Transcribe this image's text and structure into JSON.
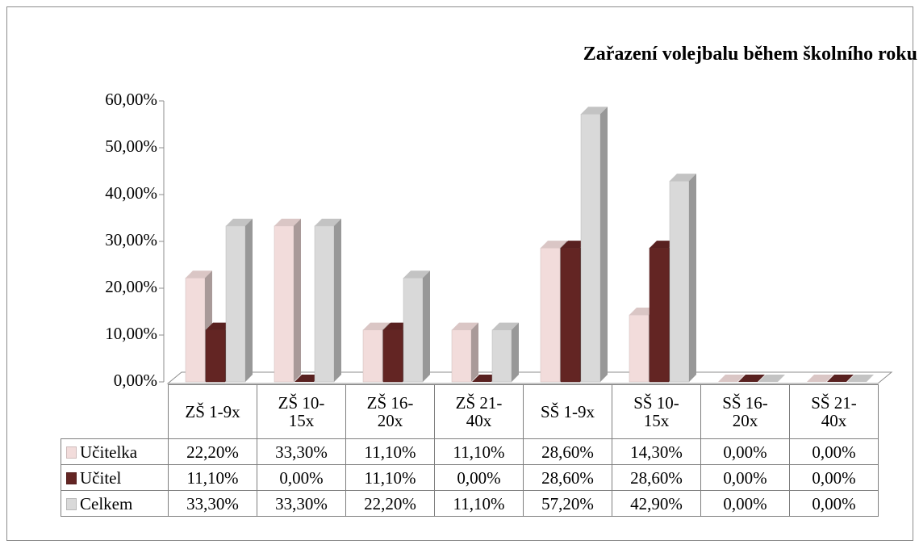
{
  "chart_data": {
    "type": "bar3d",
    "title": "Zařazení volejbalu během školního roku",
    "categories": [
      "ZŠ 1-9x",
      "ZŠ 10-15x",
      "ZŠ 16-20x",
      "ZŠ 21-40x",
      "SŠ 1-9x",
      "SŠ 10-15x",
      "SŠ 16-20x",
      "SŠ 21-40x"
    ],
    "series": [
      {
        "name": "Učitelka",
        "color": "#f2dcdb",
        "values": [
          22.2,
          33.3,
          11.1,
          11.1,
          28.6,
          14.3,
          0,
          0
        ],
        "value_labels": [
          "22,20%",
          "33,30%",
          "11,10%",
          "11,10%",
          "28,60%",
          "14,30%",
          "0,00%",
          "0,00%"
        ]
      },
      {
        "name": "Učitel",
        "color": "#632523",
        "values": [
          11.1,
          0,
          11.1,
          0,
          28.6,
          28.6,
          0,
          0
        ],
        "value_labels": [
          "11,10%",
          "0,00%",
          "11,10%",
          "0,00%",
          "28,60%",
          "28,60%",
          "0,00%",
          "0,00%"
        ]
      },
      {
        "name": "Celkem",
        "color": "#d9d9d9",
        "values": [
          33.3,
          33.3,
          22.2,
          11.1,
          57.2,
          42.9,
          0,
          0
        ],
        "value_labels": [
          "33,30%",
          "33,30%",
          "22,20%",
          "11,10%",
          "57,20%",
          "42,90%",
          "0,00%",
          "0,00%"
        ]
      }
    ],
    "ylim": [
      0,
      60
    ],
    "yticks": [
      {
        "value": 0,
        "label": "0,00%"
      },
      {
        "value": 10,
        "label": "10,00%"
      },
      {
        "value": 20,
        "label": "20,00%"
      },
      {
        "value": 30,
        "label": "30,00%"
      },
      {
        "value": 40,
        "label": "40,00%"
      },
      {
        "value": 50,
        "label": "50,00%"
      },
      {
        "value": 60,
        "label": "60,00%"
      }
    ],
    "data_table": true
  }
}
